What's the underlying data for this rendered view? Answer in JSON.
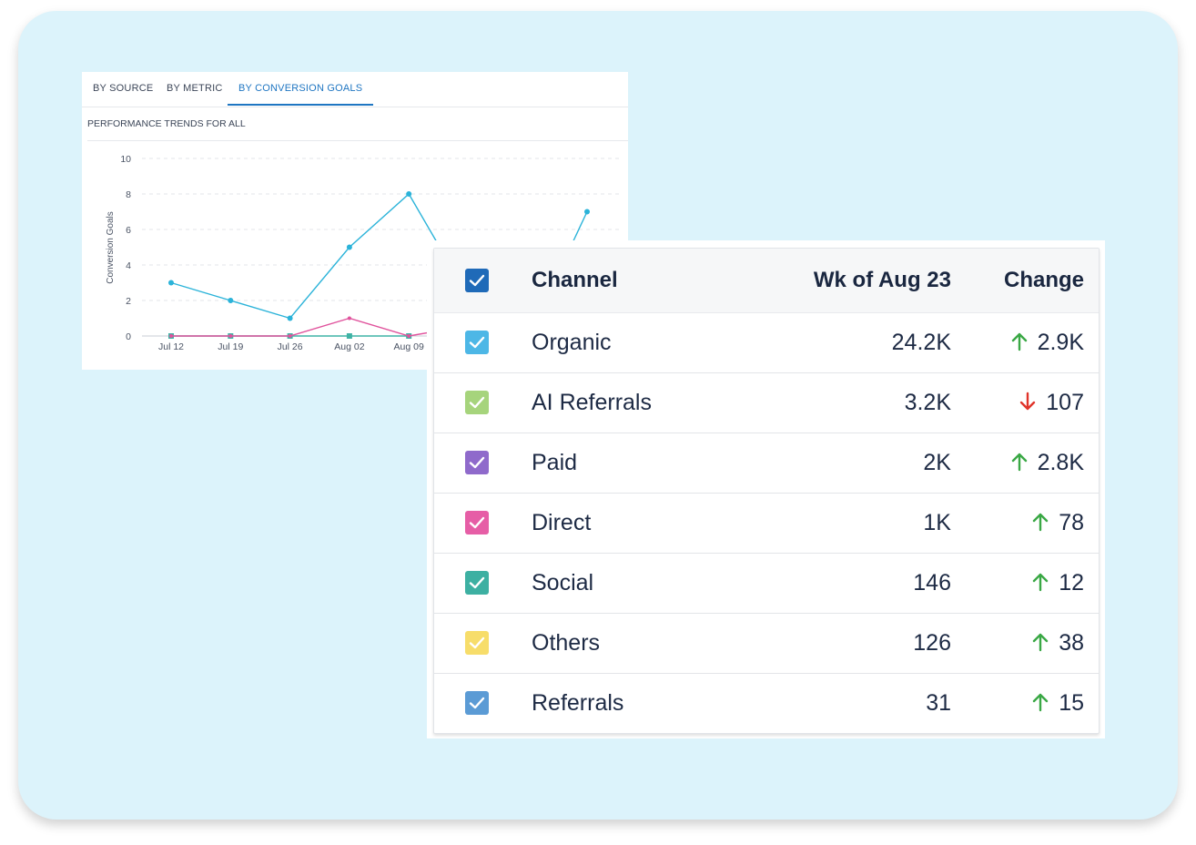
{
  "tabs": [
    {
      "label": "BY SOURCE",
      "active": false
    },
    {
      "label": "BY METRIC",
      "active": false
    },
    {
      "label": "BY CONVERSION GOALS",
      "active": true
    }
  ],
  "panel_title": "PERFORMANCE TRENDS FOR ALL",
  "chart_data": {
    "type": "line",
    "ylabel": "Conversion Goals",
    "ylim": [
      0,
      10
    ],
    "yticks": [
      "10",
      "8",
      "6",
      "4",
      "2",
      "0"
    ],
    "categories": [
      "Jul 12",
      "Jul 19",
      "Jul 26",
      "Aug 02",
      "Aug 09"
    ],
    "grid": true,
    "series": [
      {
        "color": "#2bb3d9",
        "values": [
          3,
          2,
          1,
          5,
          8
        ],
        "trailing_point": 7
      },
      {
        "color": "#e0529c",
        "values": [
          0,
          0,
          0,
          1,
          0
        ]
      },
      {
        "color": "#3fb3a5",
        "values": [
          0,
          0,
          0,
          0,
          0
        ]
      }
    ]
  },
  "table": {
    "headers": {
      "channel": "Channel",
      "week": "Wk of Aug 23",
      "change": "Change"
    },
    "header_checkbox_color": "#1f6ab8",
    "rows": [
      {
        "channel": "Organic",
        "value": "24.2K",
        "change": "2.9K",
        "direction": "up",
        "color": "#4db7e6"
      },
      {
        "channel": "AI Referrals",
        "value": "3.2K",
        "change": "107",
        "direction": "down",
        "color": "#a6d47c"
      },
      {
        "channel": "Paid",
        "value": "2K",
        "change": "2.8K",
        "direction": "up",
        "color": "#8f6acb"
      },
      {
        "channel": "Direct",
        "value": "1K",
        "change": "78",
        "direction": "up",
        "color": "#e65ea6"
      },
      {
        "channel": "Social",
        "value": "146",
        "change": "12",
        "direction": "up",
        "color": "#3db0a2"
      },
      {
        "channel": "Others",
        "value": "126",
        "change": "38",
        "direction": "up",
        "color": "#f7dd6a"
      },
      {
        "channel": "Referrals",
        "value": "31",
        "change": "15",
        "direction": "up",
        "color": "#5b9bd5"
      }
    ],
    "up_color": "#3aa845",
    "down_color": "#e0342a"
  }
}
